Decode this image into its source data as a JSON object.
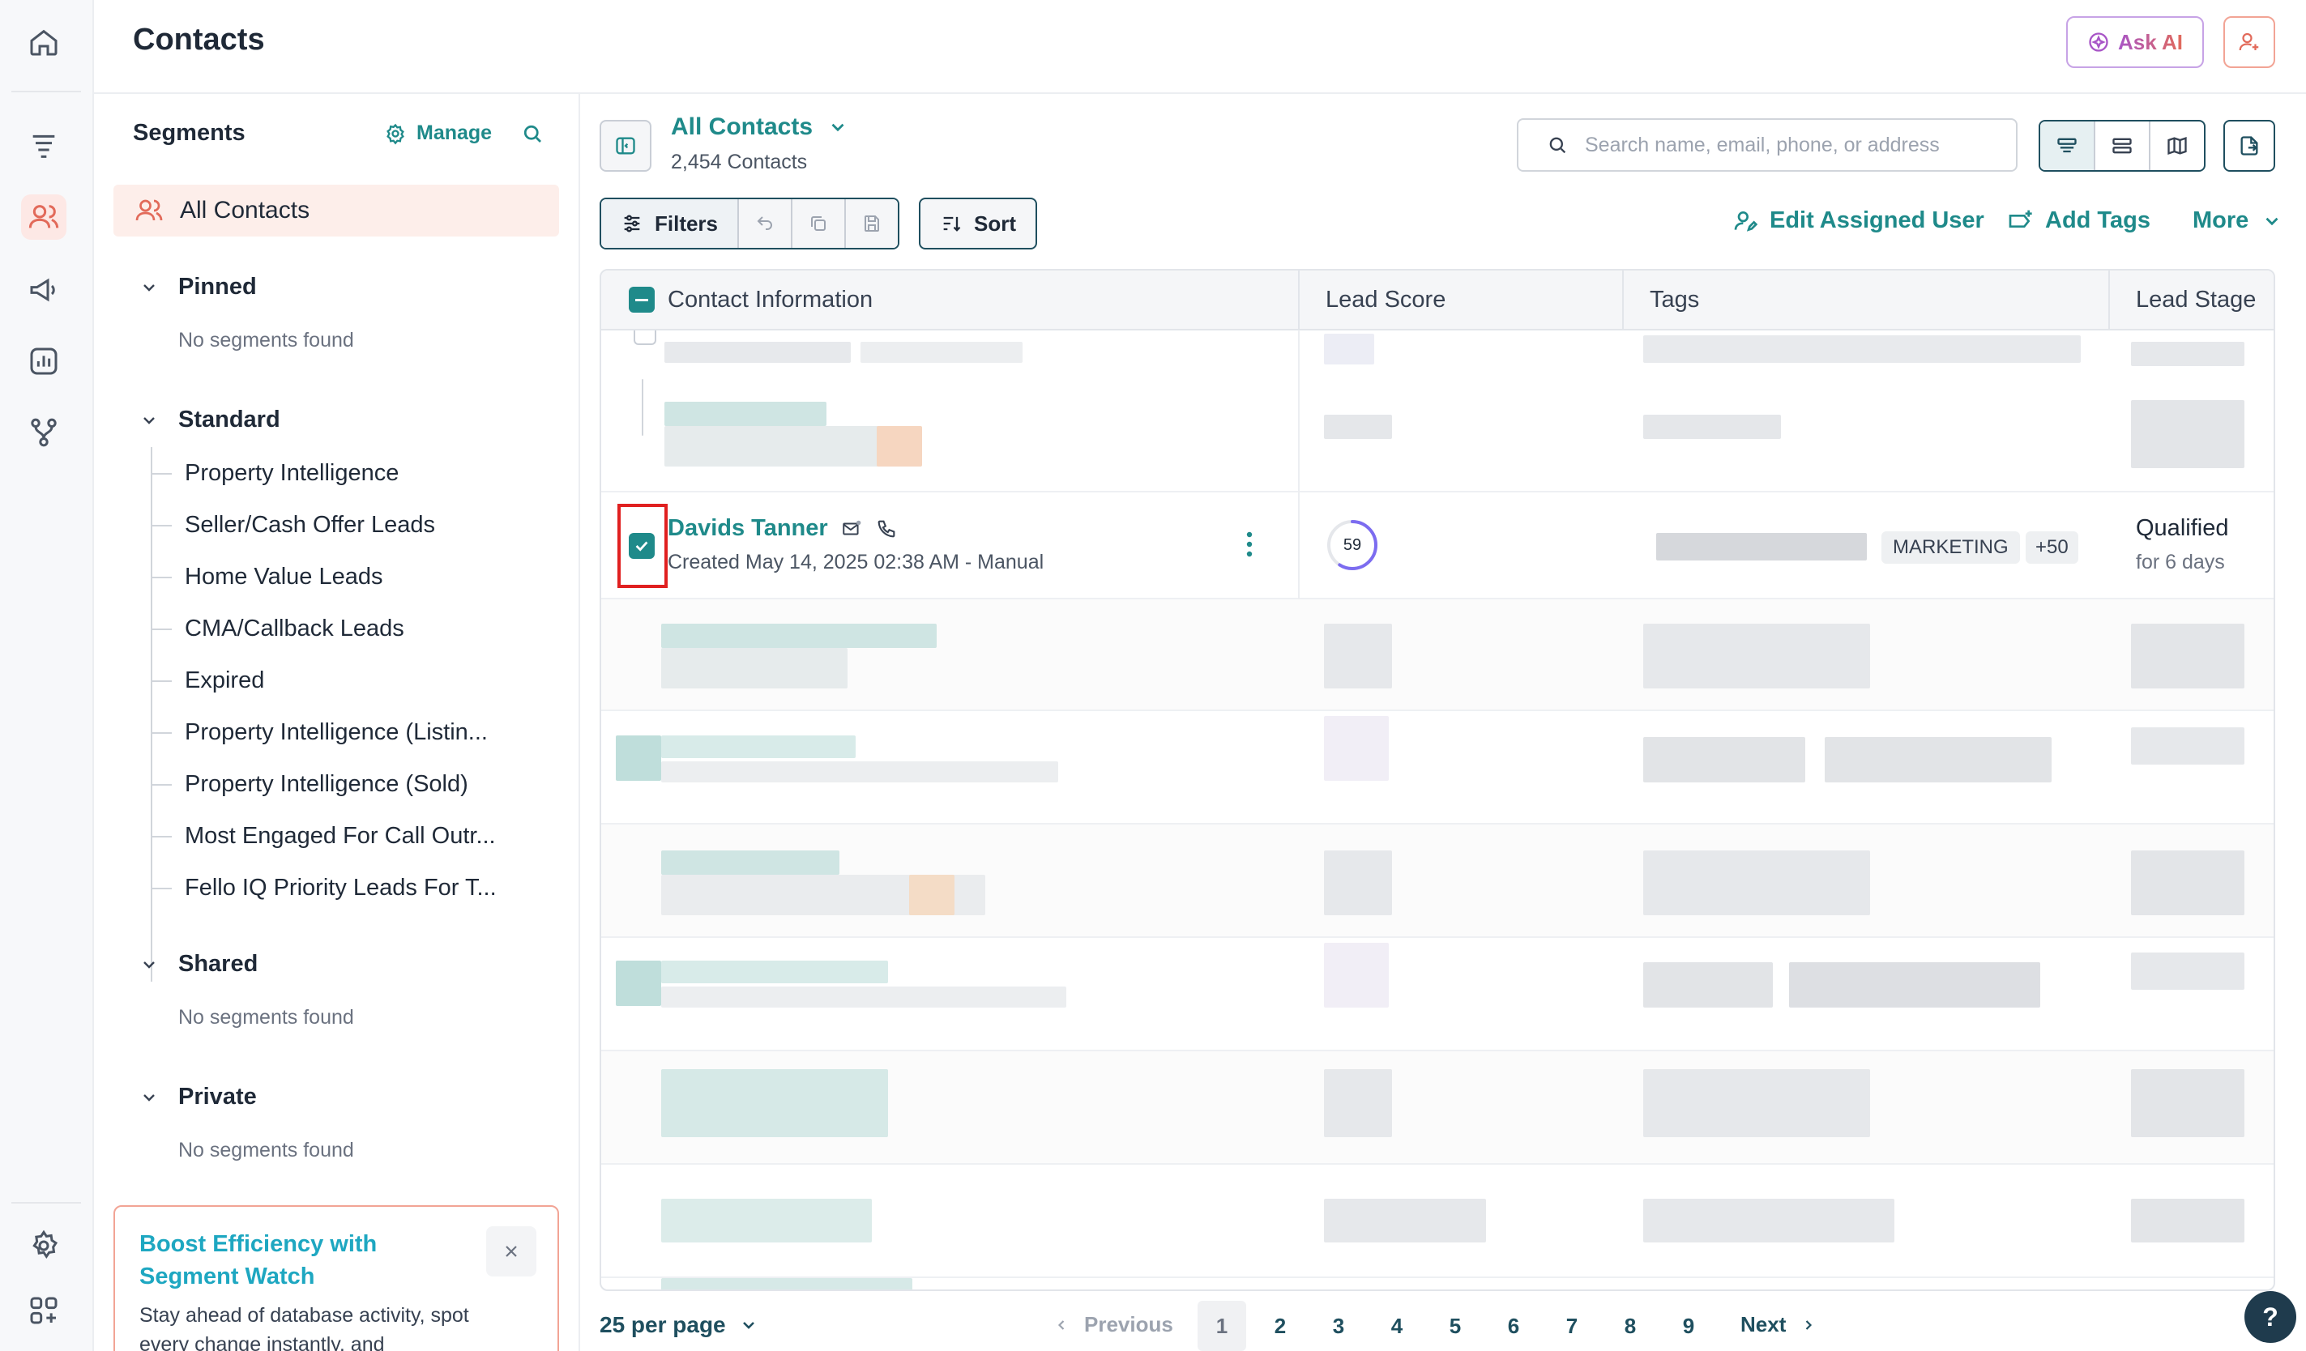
{
  "header": {
    "title": "Contacts",
    "ask_ai_label": "Ask AI"
  },
  "segments": {
    "title": "Segments",
    "manage_label": "Manage",
    "all_contacts_label": "All Contacts",
    "groups": [
      {
        "label": "Pinned",
        "empty_text": "No segments found"
      },
      {
        "label": "Standard",
        "items": [
          "Property Intelligence",
          "Seller/Cash Offer Leads",
          "Home Value Leads",
          "CMA/Callback Leads",
          "Expired",
          "Property Intelligence (Listin...",
          "Property Intelligence (Sold)",
          "Most Engaged For Call Outr...",
          "Fello IQ Priority Leads For T..."
        ]
      },
      {
        "label": "Shared",
        "empty_text": "No segments found"
      },
      {
        "label": "Private",
        "empty_text": "No segments found"
      }
    ],
    "promo": {
      "title": "Boost Efficiency with Segment Watch",
      "body": "Stay ahead of database activity, spot every change instantly, and"
    }
  },
  "main": {
    "view_title": "All Contacts",
    "contact_count": "2,454 Contacts",
    "search_placeholder": "Search name, email, phone, or address",
    "filters_label": "Filters",
    "sort_label": "Sort",
    "actions": {
      "edit_assigned_user": "Edit Assigned User",
      "add_tags": "Add Tags",
      "more": "More"
    },
    "columns": [
      "Contact Information",
      "Lead Score",
      "Tags",
      "Lead Stage"
    ],
    "selected_row": {
      "name": "Davids Tanner",
      "created": "Created May 14, 2025 02:38 AM - Manual",
      "lead_score": "59",
      "lead_score_value": 0.59,
      "tag": "MARKETING",
      "extra_tags": "+50",
      "stage": "Qualified",
      "stage_duration": "for 6 days",
      "checked": true
    },
    "pagination": {
      "per_page": "25 per page",
      "previous": "Previous",
      "next": "Next",
      "pages": [
        "1",
        "2",
        "3",
        "4",
        "5",
        "6",
        "7",
        "8",
        "9"
      ],
      "current": "1"
    }
  },
  "help_label": "?",
  "colors": {
    "accent_teal": "#1f8a8a",
    "brand_coral": "#e26a5a",
    "highlight_red": "#e02020"
  }
}
